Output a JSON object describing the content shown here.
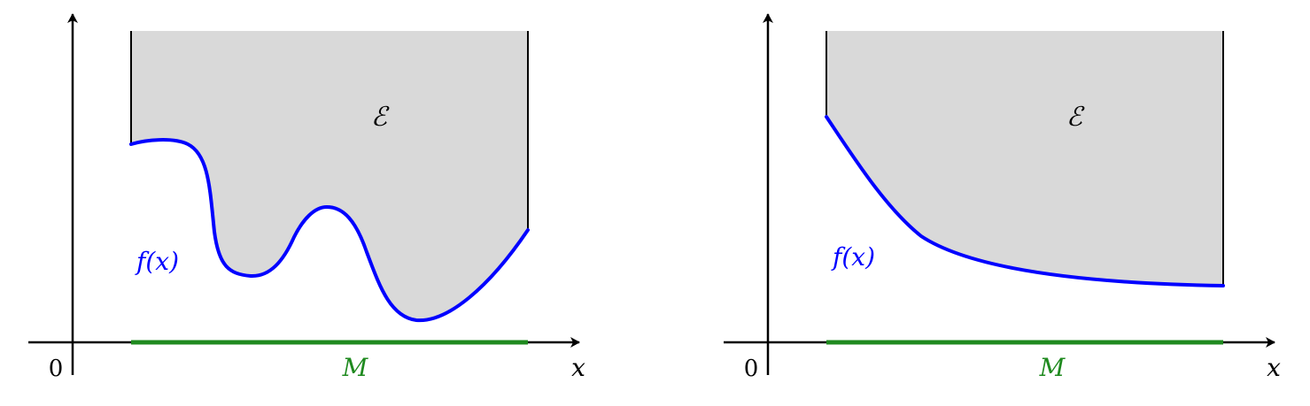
{
  "colors": {
    "region_fill": "#d9d9d9",
    "curve": "#0000ff",
    "domain_segment": "#1f8a1f",
    "axes": "#000000"
  },
  "panels": [
    {
      "id": "left",
      "origin_label": "0",
      "x_axis_label": "x",
      "domain_label": "M",
      "region_label": "ℰ",
      "function_label": "f(x)"
    },
    {
      "id": "right",
      "origin_label": "0",
      "x_axis_label": "x",
      "domain_label": "M",
      "region_label": "ℰ",
      "function_label": "f(x)"
    }
  ]
}
